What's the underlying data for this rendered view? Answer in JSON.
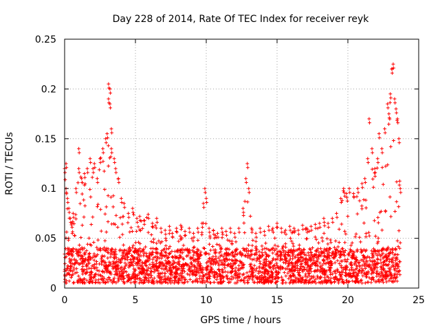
{
  "chart_data": {
    "type": "scatter",
    "title": "Day 228 of 2014, Rate Of TEC Index for receiver reyk",
    "xlabel": "GPS time / hours",
    "ylabel": "ROTI / TECUs",
    "xlim": [
      0,
      25
    ],
    "ylim": [
      0,
      0.25
    ],
    "xticks": [
      "0",
      "5",
      "10",
      "15",
      "20",
      "25"
    ],
    "yticks": [
      "0",
      "0.05",
      "0.1",
      "0.15",
      "0.2",
      "0.25"
    ],
    "xtick_values": [
      0,
      5,
      10,
      15,
      20,
      25
    ],
    "ytick_values": [
      0,
      0.05,
      0.1,
      0.15,
      0.2,
      0.25
    ],
    "grid": true,
    "marker": "+",
    "series": [
      {
        "name": "ROTI",
        "color": "#ff0000",
        "x": [
          0.0,
          0.1,
          0.1,
          0.2,
          0.3,
          0.4,
          0.5,
          0.6,
          0.8,
          1.0,
          1.0,
          1.2,
          1.4,
          1.6,
          1.8,
          2.0,
          2.1,
          2.3,
          2.5,
          2.7,
          2.9,
          3.0,
          3.1,
          3.1,
          3.2,
          3.2,
          3.3,
          3.3,
          3.5,
          3.6,
          3.8,
          4.0,
          4.2,
          4.5,
          4.8,
          5.1,
          5.3,
          5.6,
          5.9,
          6.2,
          6.5,
          6.8,
          7.1,
          7.4,
          7.6,
          7.9,
          8.2,
          8.5,
          8.8,
          9.1,
          9.4,
          9.7,
          9.8,
          9.9,
          10.0,
          10.2,
          10.5,
          10.8,
          11.1,
          11.4,
          11.7,
          12.0,
          12.3,
          12.6,
          12.8,
          12.9,
          13.0,
          13.2,
          13.5,
          13.8,
          14.1,
          14.4,
          14.7,
          15.0,
          15.3,
          15.6,
          15.9,
          16.2,
          16.5,
          16.8,
          17.1,
          17.4,
          17.7,
          18.0,
          18.3,
          18.6,
          18.9,
          19.2,
          19.5,
          19.7,
          19.9,
          20.1,
          20.4,
          20.7,
          21.0,
          21.2,
          21.4,
          21.5,
          21.7,
          21.9,
          22.1,
          22.2,
          22.4,
          22.6,
          22.8,
          22.9,
          23.0,
          23.1,
          23.2,
          23.3,
          23.4,
          23.5,
          23.6,
          23.7
        ],
        "y": [
          0.12,
          0.125,
          0.1,
          0.09,
          0.08,
          0.07,
          0.065,
          0.075,
          0.1,
          0.14,
          0.12,
          0.11,
          0.115,
          0.12,
          0.13,
          0.12,
          0.125,
          0.11,
          0.13,
          0.14,
          0.15,
          0.155,
          0.19,
          0.205,
          0.2,
          0.185,
          0.16,
          0.14,
          0.13,
          0.12,
          0.11,
          0.09,
          0.085,
          0.075,
          0.08,
          0.07,
          0.072,
          0.068,
          0.074,
          0.065,
          0.07,
          0.06,
          0.058,
          0.062,
          0.055,
          0.06,
          0.063,
          0.057,
          0.06,
          0.055,
          0.06,
          0.065,
          0.085,
          0.1,
          0.09,
          0.06,
          0.058,
          0.055,
          0.06,
          0.057,
          0.06,
          0.055,
          0.06,
          0.08,
          0.11,
          0.125,
          0.1,
          0.06,
          0.055,
          0.06,
          0.057,
          0.062,
          0.06,
          0.065,
          0.06,
          0.058,
          0.062,
          0.06,
          0.058,
          0.063,
          0.06,
          0.062,
          0.064,
          0.065,
          0.07,
          0.065,
          0.07,
          0.075,
          0.09,
          0.1,
          0.095,
          0.1,
          0.095,
          0.1,
          0.105,
          0.11,
          0.13,
          0.17,
          0.14,
          0.12,
          0.13,
          0.155,
          0.14,
          0.16,
          0.185,
          0.175,
          0.195,
          0.22,
          0.225,
          0.19,
          0.18,
          0.17,
          0.15,
          0.1
        ]
      }
    ],
    "baseline_band": [
      0.005,
      0.04
    ]
  }
}
